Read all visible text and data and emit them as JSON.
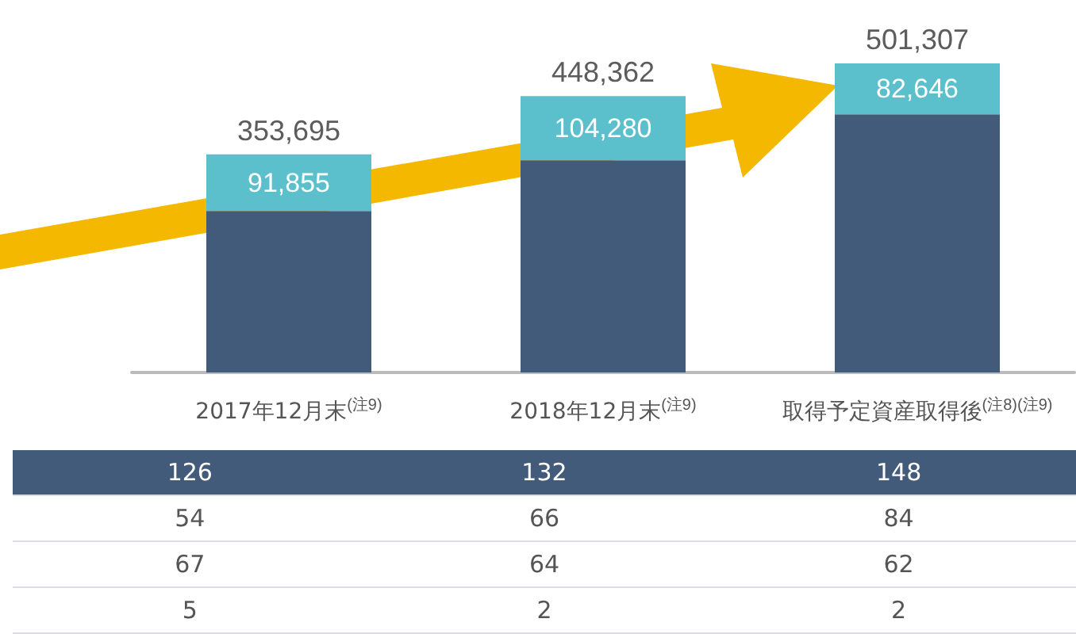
{
  "chart_data": [
    {
      "type": "bar",
      "stacked": true,
      "categories": [
        "2017年12月末$^{(注9)}$",
        "2018年12月末$^{(注9)}$",
        "取得予定資産取得後$^{(注8)(注9)}$"
      ],
      "tick_labels": "x",
      "series": [
        {
          "color": "#425b7a",
          "values": [
            261840,
            344082,
            418661
          ]
        },
        {
          "color": "#5bc0cc",
          "values": [
            91855,
            104280,
            82646
          ],
          "value_labels": [
            "91,855",
            "104,280",
            "82,646"
          ]
        }
      ],
      "totals": [
        "353,695",
        "448,362",
        "501,307"
      ]
    },
    {
      "type": "other",
      "colors": [
        "#425b7a",
        "#ffffff",
        "#ffffff",
        "#ffffff"
      ],
      "annotations": [
        "126",
        "132",
        "148",
        "54",
        "66",
        "84",
        "67",
        "64",
        "62",
        "5",
        "2",
        "2"
      ]
    }
  ]
}
